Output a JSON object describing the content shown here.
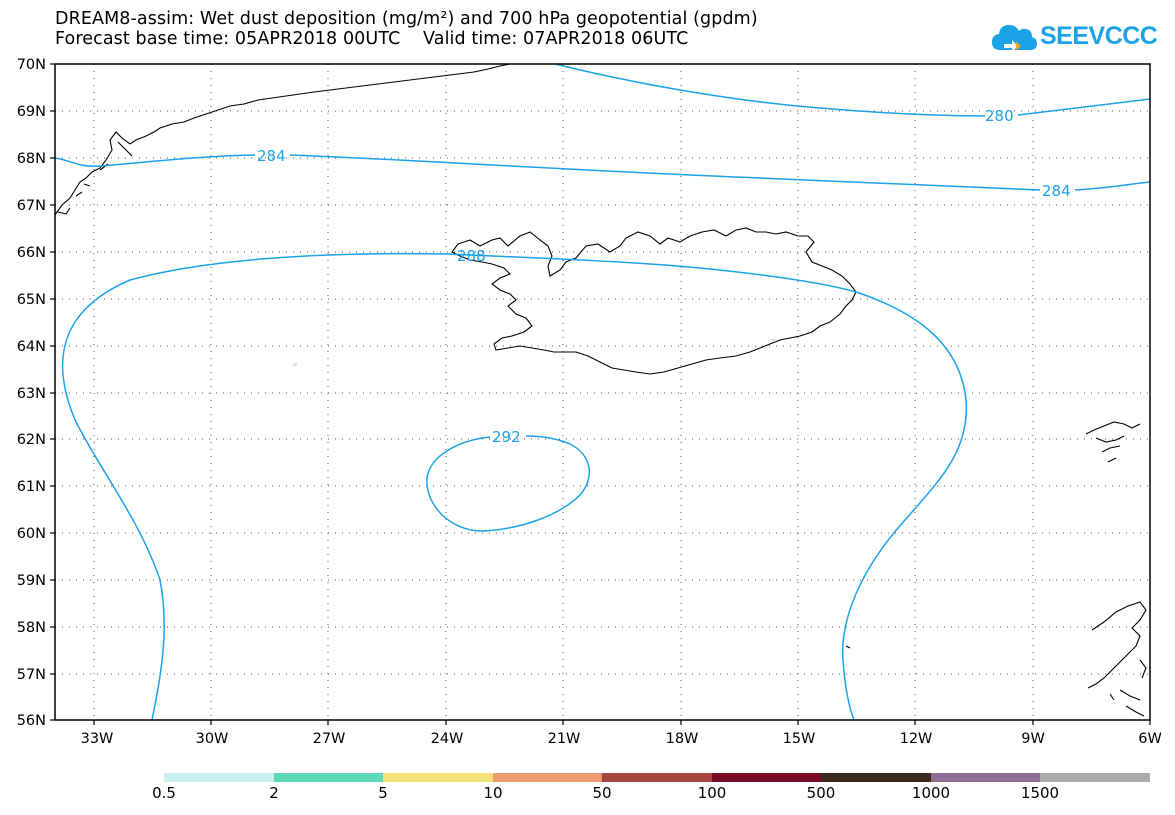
{
  "header": {
    "title_line1": "DREAM8-assim: Wet dust deposition (mg/m²) and 700 hPa geopotential (gpdm)",
    "title_line2": "Forecast base time: 05APR2018 00UTC    Valid time: 07APR2018 06UTC"
  },
  "logo": {
    "text": "SEEVCCC",
    "icon": "cloud-icon",
    "color": "#1aa3e8"
  },
  "axes": {
    "lat_labels": [
      "70N",
      "69N",
      "68N",
      "67N",
      "66N",
      "65N",
      "64N",
      "63N",
      "62N",
      "61N",
      "60N",
      "59N",
      "58N",
      "57N",
      "56N"
    ],
    "lon_labels": [
      "33W",
      "30W",
      "27W",
      "24W",
      "21W",
      "18W",
      "15W",
      "12W",
      "9W",
      "6W"
    ]
  },
  "contours": {
    "color": "#1aa3e8",
    "labels": [
      "280",
      "284",
      "284",
      "288",
      "292"
    ]
  },
  "legend": {
    "labels": [
      "0.5",
      "2",
      "5",
      "10",
      "50",
      "100",
      "500",
      "1000",
      "1500"
    ],
    "colors": [
      "#c8f0ee",
      "#5ed9b8",
      "#f6e27a",
      "#ee9a70",
      "#a6463e",
      "#7a0a26",
      "#3a2a1c",
      "#8f6e96",
      "#ababab"
    ]
  }
}
